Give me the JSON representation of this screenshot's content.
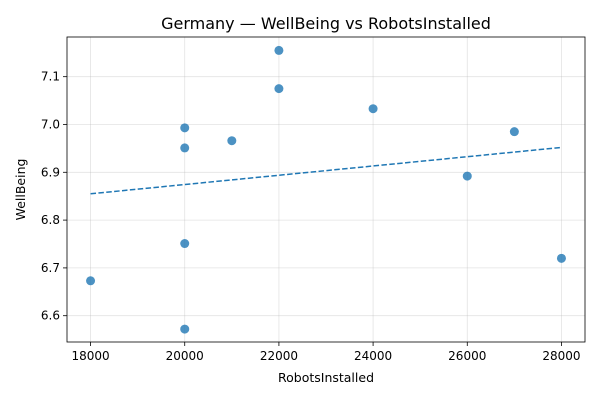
{
  "chart_data": {
    "type": "scatter",
    "title": "Germany — WellBeing vs RobotsInstalled",
    "xlabel": "RobotsInstalled",
    "ylabel": "WellBeing",
    "xlim": [
      17500,
      28500
    ],
    "ylim": [
      6.545,
      7.183
    ],
    "xticks": [
      18000,
      20000,
      22000,
      24000,
      26000,
      28000
    ],
    "yticks": [
      6.6,
      6.7,
      6.8,
      6.9,
      7.0,
      7.1
    ],
    "grid": true,
    "point_color": "#1f77b4",
    "points": [
      {
        "x": 22000,
        "y": 7.155
      },
      {
        "x": 22000,
        "y": 7.075
      },
      {
        "x": 24000,
        "y": 7.033
      },
      {
        "x": 20000,
        "y": 6.993
      },
      {
        "x": 27000,
        "y": 6.985
      },
      {
        "x": 21000,
        "y": 6.966
      },
      {
        "x": 20000,
        "y": 6.951
      },
      {
        "x": 26000,
        "y": 6.892
      },
      {
        "x": 20000,
        "y": 6.751
      },
      {
        "x": 28000,
        "y": 6.72
      },
      {
        "x": 18000,
        "y": 6.673
      },
      {
        "x": 20000,
        "y": 6.572
      }
    ],
    "trendline": {
      "style": "dashed",
      "x": [
        18000,
        28000
      ],
      "y": [
        6.855,
        6.952
      ]
    }
  }
}
